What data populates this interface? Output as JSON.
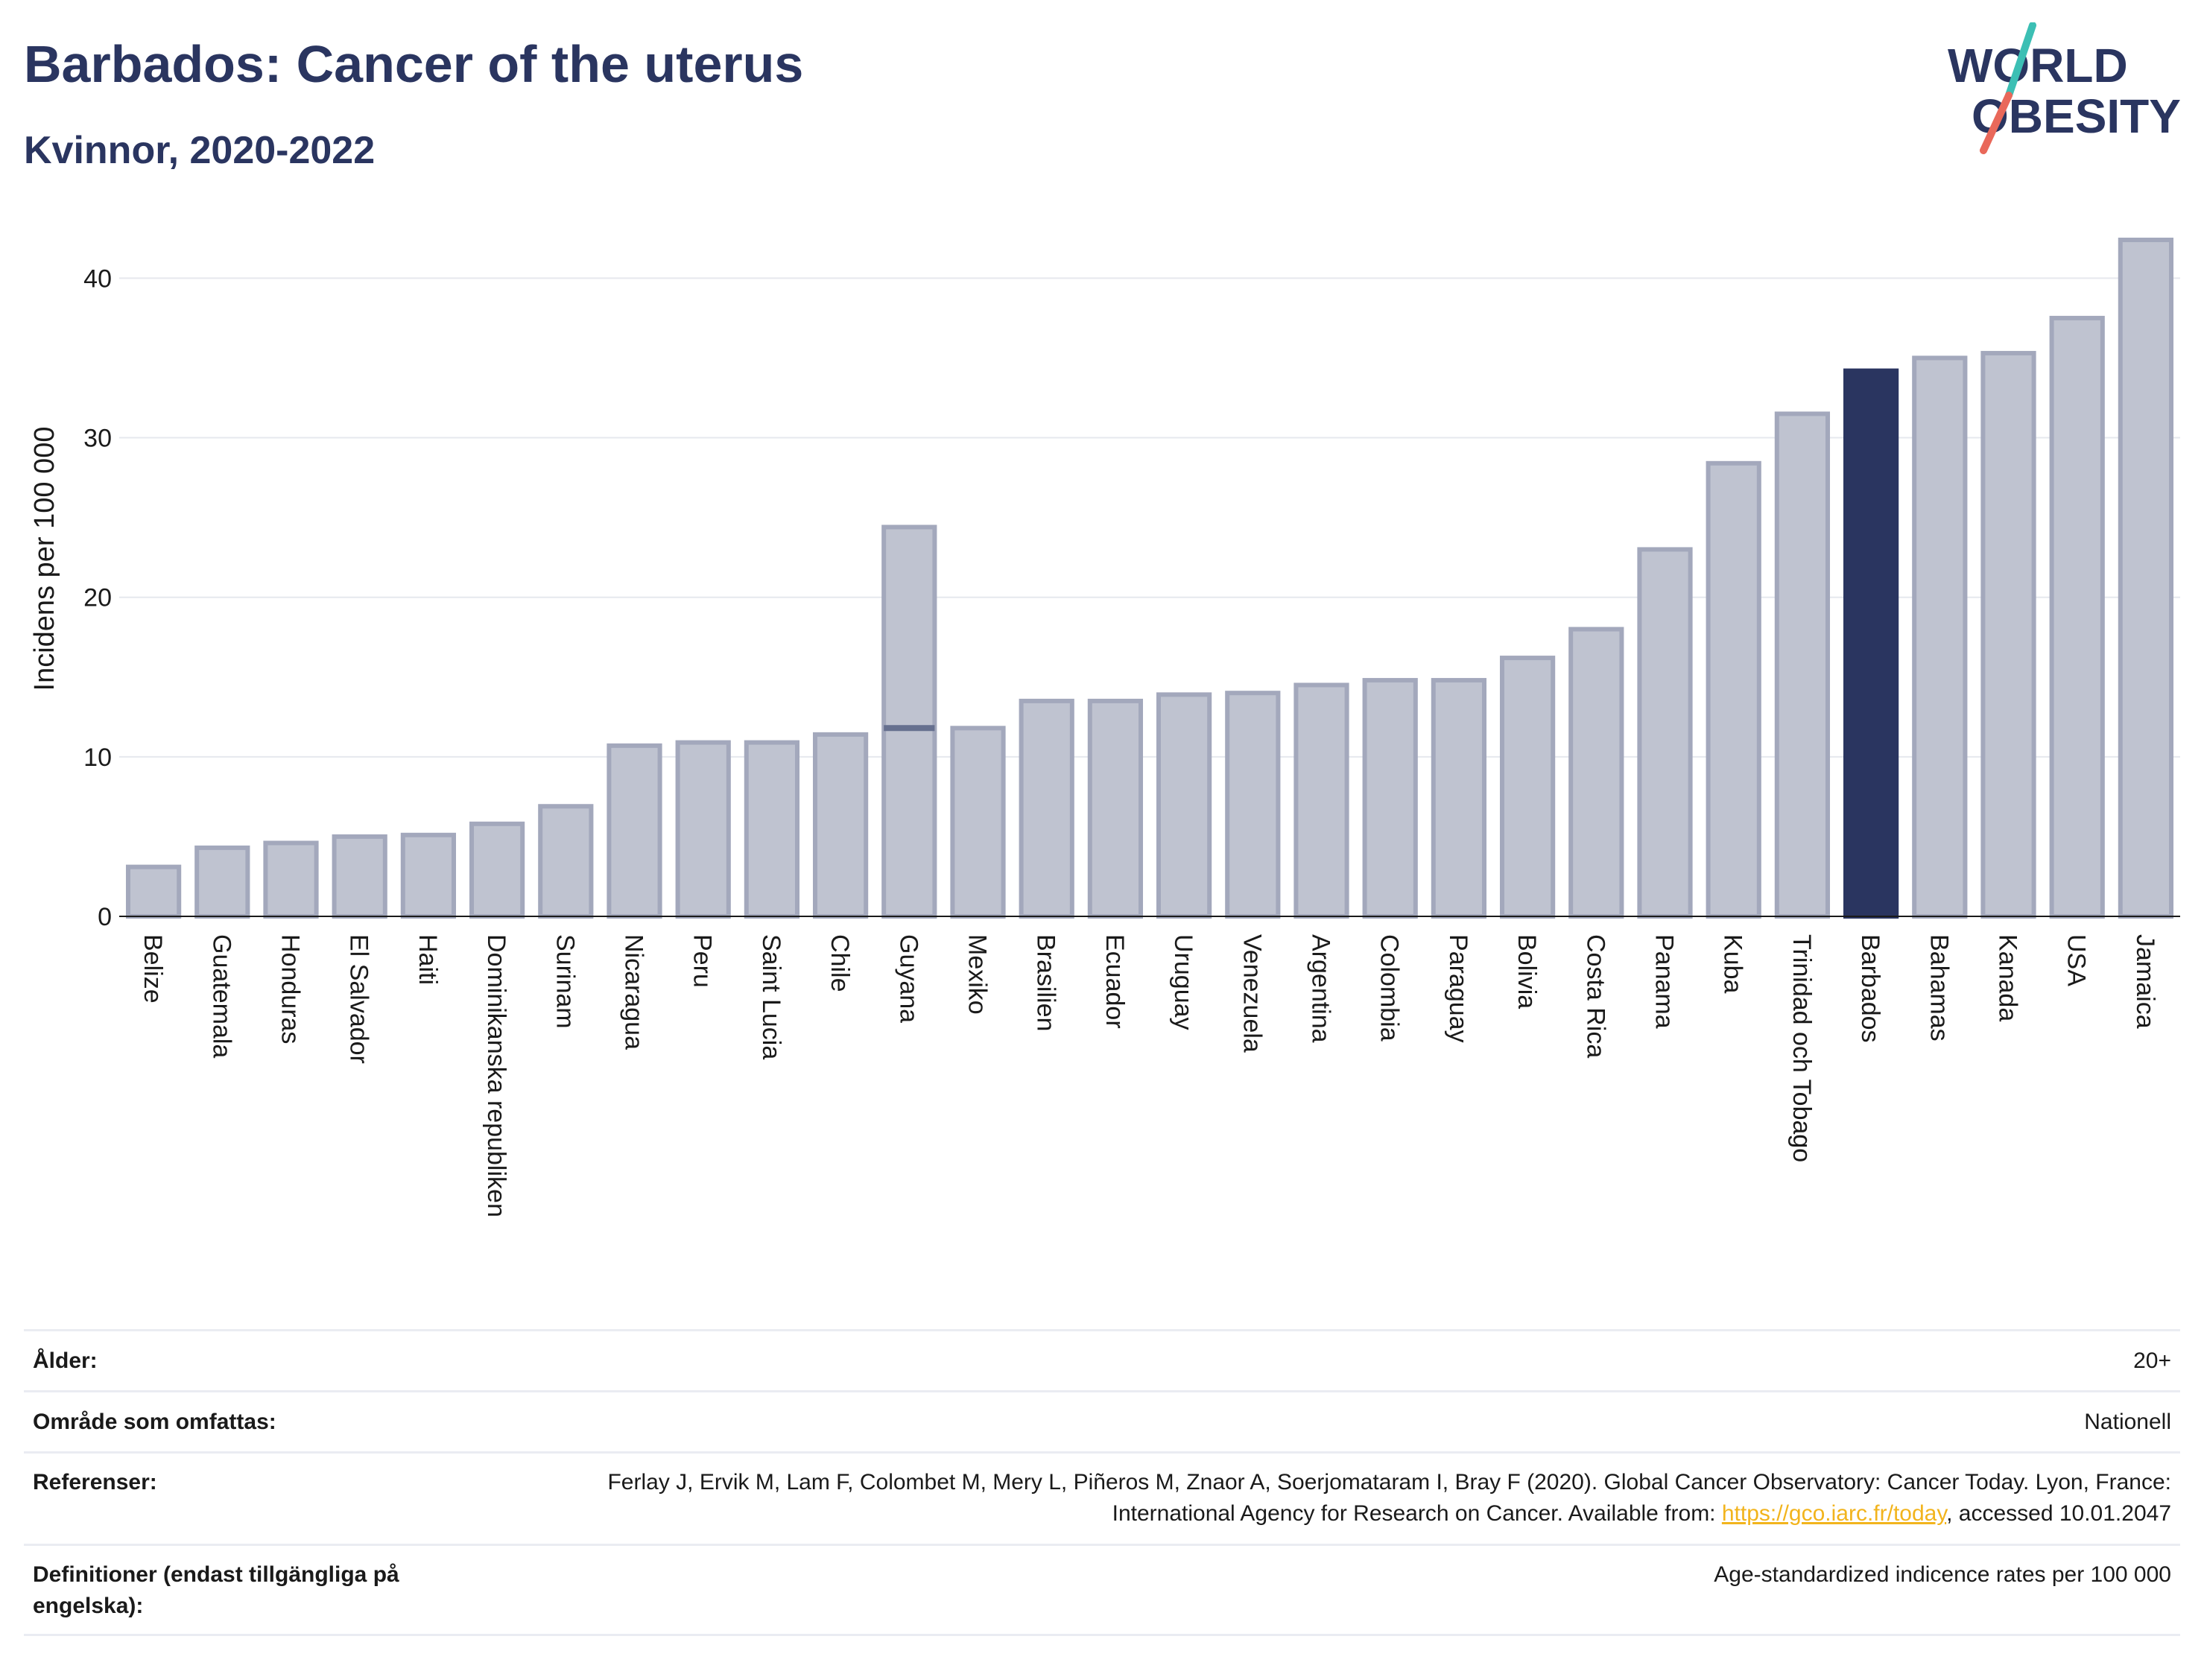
{
  "header": {
    "title": "Barbados: Cancer of the uterus",
    "subtitle": "Kvinnor, 2020-2022"
  },
  "logo": {
    "line1": "WORLD",
    "line2": "OBESITY",
    "slash_colors": [
      "#3cbfb4",
      "#e9685a"
    ]
  },
  "chart_data": {
    "type": "bar",
    "title": "Barbados: Cancer of the uterus",
    "subtitle": "Kvinnor, 2020-2022",
    "ylabel": "Incidens per 100 000",
    "xlabel": "",
    "ylim": [
      0,
      43
    ],
    "yticks": [
      0,
      10,
      20,
      30,
      40
    ],
    "grid": true,
    "highlight": "Barbados",
    "colors": {
      "bar": "#bfc3d0",
      "bar_edge": "#a3a8bc",
      "highlight": "#2a3560",
      "marker": "#66708f"
    },
    "categories": [
      "Belize",
      "Guatemala",
      "Honduras",
      "El Salvador",
      "Haiti",
      "Dominikanska republiken",
      "Surinam",
      "Nicaragua",
      "Peru",
      "Saint Lucia",
      "Chile",
      "Guyana",
      "Mexiko",
      "Brasilien",
      "Ecuador",
      "Uruguay",
      "Venezuela",
      "Argentina",
      "Colombia",
      "Paraguay",
      "Bolivia",
      "Costa Rica",
      "Panama",
      "Kuba",
      "Trinidad och Tobago",
      "Barbados",
      "Bahamas",
      "Kanada",
      "USA",
      "Jamaica"
    ],
    "values": [
      3.1,
      4.3,
      4.6,
      5.0,
      5.1,
      5.8,
      6.9,
      10.7,
      10.9,
      10.9,
      11.4,
      24.4,
      11.8,
      13.5,
      13.5,
      13.9,
      14.0,
      14.5,
      14.8,
      14.8,
      16.2,
      18.0,
      23.0,
      28.4,
      31.5,
      34.2,
      35.0,
      35.3,
      37.5,
      42.4
    ],
    "secondary_marker": {
      "category": "Guyana",
      "value": 11.8
    }
  },
  "info": [
    {
      "label": "Ålder:",
      "value": "20+"
    },
    {
      "label": "Område som omfattas:",
      "value": "Nationell"
    },
    {
      "label": "Referenser:",
      "value_pre": "Ferlay J, Ervik M, Lam F, Colombet M, Mery L, Piñeros M, Znaor A, Soerjomataram I, Bray F (2020). Global Cancer Observatory: Cancer Today. Lyon, France: International Agency for Research on Cancer. Available from: ",
      "link": "https://gco.iarc.fr/today",
      "value_post": ", accessed 10.01.2047"
    },
    {
      "label": "Definitioner (endast tillgängliga på engelska):",
      "value": "Age-standardized indicence rates per 100 000"
    }
  ]
}
